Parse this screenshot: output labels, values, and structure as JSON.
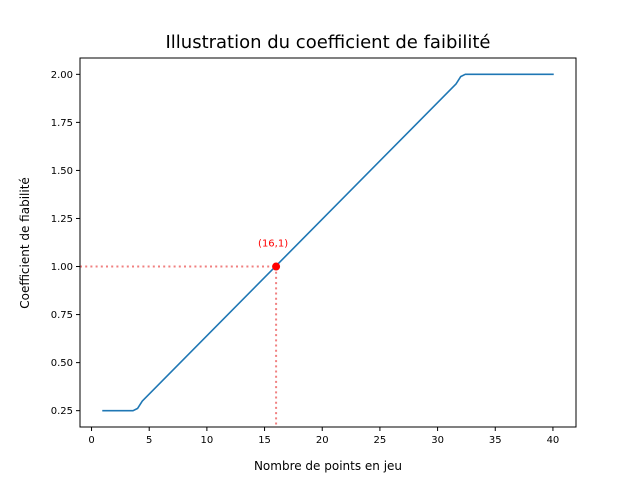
{
  "chart_data": {
    "type": "line",
    "title": "Illustration du coefficient de faibilité",
    "xlabel": "Nombre de points en jeu",
    "ylabel": "Coefficient de fiabilité",
    "xlim": [
      -1,
      42
    ],
    "ylim": [
      0.165,
      2.085
    ],
    "xticks": [
      0,
      5,
      10,
      15,
      20,
      25,
      30,
      35,
      40
    ],
    "xtick_labels": [
      "0",
      "5",
      "10",
      "15",
      "20",
      "25",
      "30",
      "35",
      "40"
    ],
    "yticks": [
      0.25,
      0.5,
      0.75,
      1.0,
      1.25,
      1.5,
      1.75,
      2.0
    ],
    "ytick_labels": [
      "0.25",
      "0.50",
      "0.75",
      "1.00",
      "1.25",
      "1.50",
      "1.75",
      "2.00"
    ],
    "grid": false,
    "series": [
      {
        "color": "#1f77b4",
        "x": [
          1,
          3.6,
          4.0,
          4.4,
          31.6,
          32.0,
          32.4,
          40
        ],
        "y": [
          0.25,
          0.25,
          0.262,
          0.3,
          1.95,
          1.988,
          2.0,
          2.0
        ]
      }
    ],
    "highlight": {
      "x": 16,
      "y": 1,
      "label": "(16,1)",
      "color": "#ff0000",
      "guide_color": "#f08080"
    }
  }
}
